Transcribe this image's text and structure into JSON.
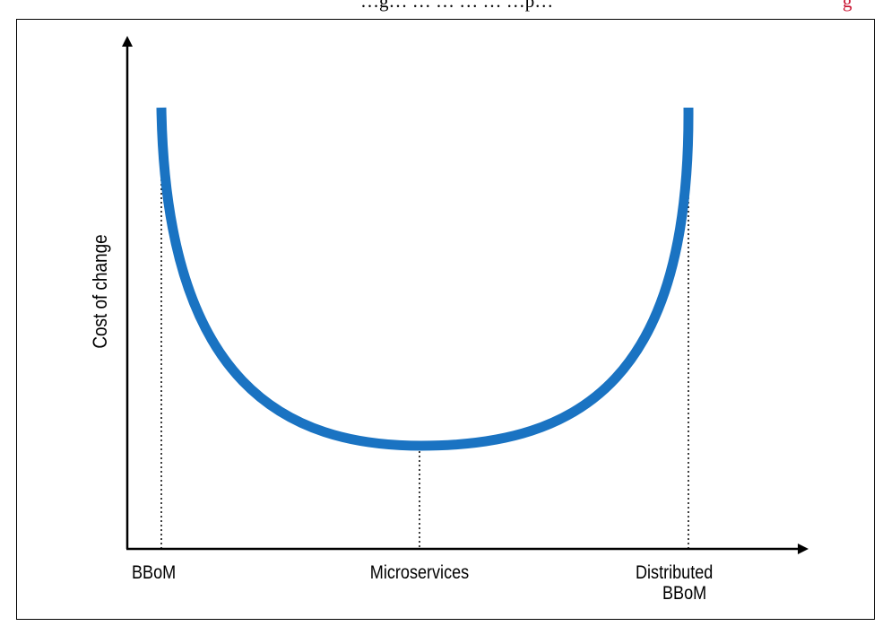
{
  "header_fragment": {
    "black_text": "…g… … … … … …p…",
    "red_text": "g"
  },
  "diagram": {
    "y_axis_label": "Cost of change",
    "x_labels": {
      "left": "BBoM",
      "middle": "Microservices",
      "right_line1": "Distributed",
      "right_line2": "BBoM"
    },
    "curve_color": "#1a73c2",
    "axis_color": "#000000"
  }
}
